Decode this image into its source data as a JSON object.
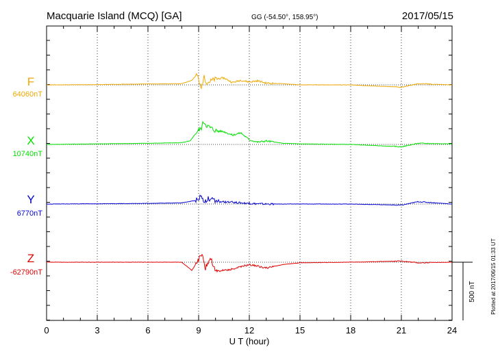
{
  "chart_data": {
    "type": "line",
    "title": "Macquarie Island (MCQ)  [GA]",
    "coords": "GG (-54.50°, 158.95°)",
    "date": "2017/05/15",
    "xlabel": "U T (hour)",
    "xlim": [
      0,
      24
    ],
    "x_ticks": [
      "0",
      "3",
      "6",
      "9",
      "12",
      "15",
      "18",
      "21",
      "24"
    ],
    "scale_label": "500 nT",
    "scale_nT": 500,
    "plotted_note": "Plotted at 2017/06/15 01:33 UT",
    "grid": "vertical dotted every 3 hours",
    "series": [
      {
        "name": "F",
        "baseline": "64060nT",
        "color": "#f0a800",
        "x": [
          0,
          3,
          6,
          8,
          8.6,
          8.9,
          9.15,
          9.3,
          9.5,
          10,
          10.5,
          11,
          11.5,
          12,
          12.5,
          13,
          14,
          15,
          18,
          21,
          22,
          24
        ],
        "dev": [
          0,
          2,
          8,
          10,
          40,
          90,
          -40,
          70,
          20,
          50,
          60,
          20,
          40,
          25,
          35,
          15,
          10,
          0,
          0,
          -20,
          10,
          0
        ]
      },
      {
        "name": "X",
        "baseline": "10740nT",
        "color": "#00e000",
        "x": [
          0,
          3,
          6,
          8,
          8.5,
          8.9,
          9.15,
          9.3,
          9.5,
          10,
          10.5,
          11,
          11.5,
          12,
          12.5,
          13,
          14,
          15,
          18,
          21,
          22,
          24
        ],
        "dev": [
          0,
          5,
          10,
          15,
          30,
          110,
          140,
          200,
          160,
          120,
          110,
          80,
          100,
          40,
          20,
          30,
          10,
          5,
          0,
          -20,
          10,
          5
        ]
      },
      {
        "name": "Y",
        "baseline": "6770nT",
        "color": "#0000d0",
        "x": [
          0,
          3,
          6,
          8,
          8.8,
          9.15,
          9.3,
          9.6,
          10,
          11,
          12,
          13,
          15,
          18,
          21,
          22,
          24
        ],
        "dev": [
          0,
          2,
          5,
          10,
          30,
          70,
          20,
          50,
          20,
          15,
          5,
          0,
          0,
          0,
          -10,
          20,
          0
        ]
      },
      {
        "name": "Z",
        "baseline": "-62790nT",
        "color": "#e00000",
        "x": [
          0,
          3,
          6,
          8,
          8.6,
          9,
          9.2,
          9.4,
          9.7,
          10,
          11,
          12,
          13,
          14,
          15,
          18,
          21,
          22,
          24
        ],
        "dev": [
          0,
          0,
          0,
          0,
          -70,
          20,
          80,
          -50,
          40,
          -80,
          -60,
          -20,
          -50,
          -20,
          -5,
          0,
          10,
          -5,
          0
        ]
      }
    ]
  }
}
